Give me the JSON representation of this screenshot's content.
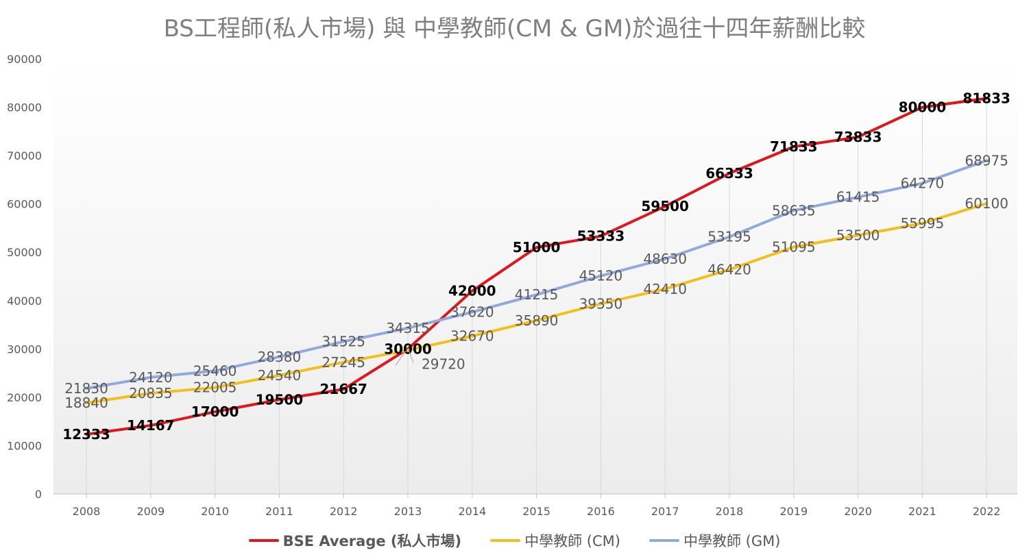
{
  "chart_data": {
    "type": "line",
    "title": "BS工程師(私人市場) 與 中學教師(CM & GM)於過往十四年薪酬比較",
    "categories": [
      "2008",
      "2009",
      "2010",
      "2011",
      "2012",
      "2013",
      "2014",
      "2015",
      "2016",
      "2017",
      "2018",
      "2019",
      "2020",
      "2021",
      "2022"
    ],
    "ylim": [
      0,
      90000
    ],
    "yticks": [
      "0",
      "10000",
      "20000",
      "30000",
      "40000",
      "50000",
      "60000",
      "70000",
      "80000",
      "90000"
    ],
    "grid": "vertical drop lines at categories",
    "legend_position": "bottom",
    "series": [
      {
        "name": "BSE Average (私人市場)",
        "color": "#e0161a",
        "label_style": "bold-black",
        "values": [
          12333,
          14167,
          17000,
          19500,
          21667,
          30000,
          42000,
          51000,
          53333,
          59500,
          66333,
          71833,
          73833,
          80000,
          81833
        ],
        "labels": [
          "12333",
          "14167",
          "17000",
          "19500",
          "21667",
          "30000",
          "42000",
          "51000",
          "53333",
          "59500",
          "66333",
          "71833",
          "73833",
          "80000",
          "81833"
        ]
      },
      {
        "name": "中學教師 (CM)",
        "color": "#f4bf1d",
        "label_style": "gray",
        "values": [
          18840,
          20835,
          22005,
          24540,
          27245,
          29720,
          32670,
          35890,
          39350,
          42410,
          46420,
          51095,
          53500,
          55995,
          60100
        ],
        "labels": [
          "18840",
          "20835",
          "22005",
          "24540",
          "27245",
          "29720",
          "32670",
          "35890",
          "39350",
          "42410",
          "46420",
          "51095",
          "53500",
          "55995",
          "60100"
        ]
      },
      {
        "name": "中學教師 (GM)",
        "color": "#8faadc",
        "label_style": "gray",
        "values": [
          21830,
          24120,
          25460,
          28380,
          31525,
          34315,
          37620,
          41215,
          45120,
          48630,
          53195,
          58635,
          61415,
          64270,
          68975
        ],
        "labels": [
          "21830",
          "24120",
          "25460",
          "28380",
          "31525",
          "34315",
          "37620",
          "41215",
          "45120",
          "48630",
          "53195",
          "58635",
          "61415",
          "64270",
          "68975"
        ]
      }
    ]
  }
}
